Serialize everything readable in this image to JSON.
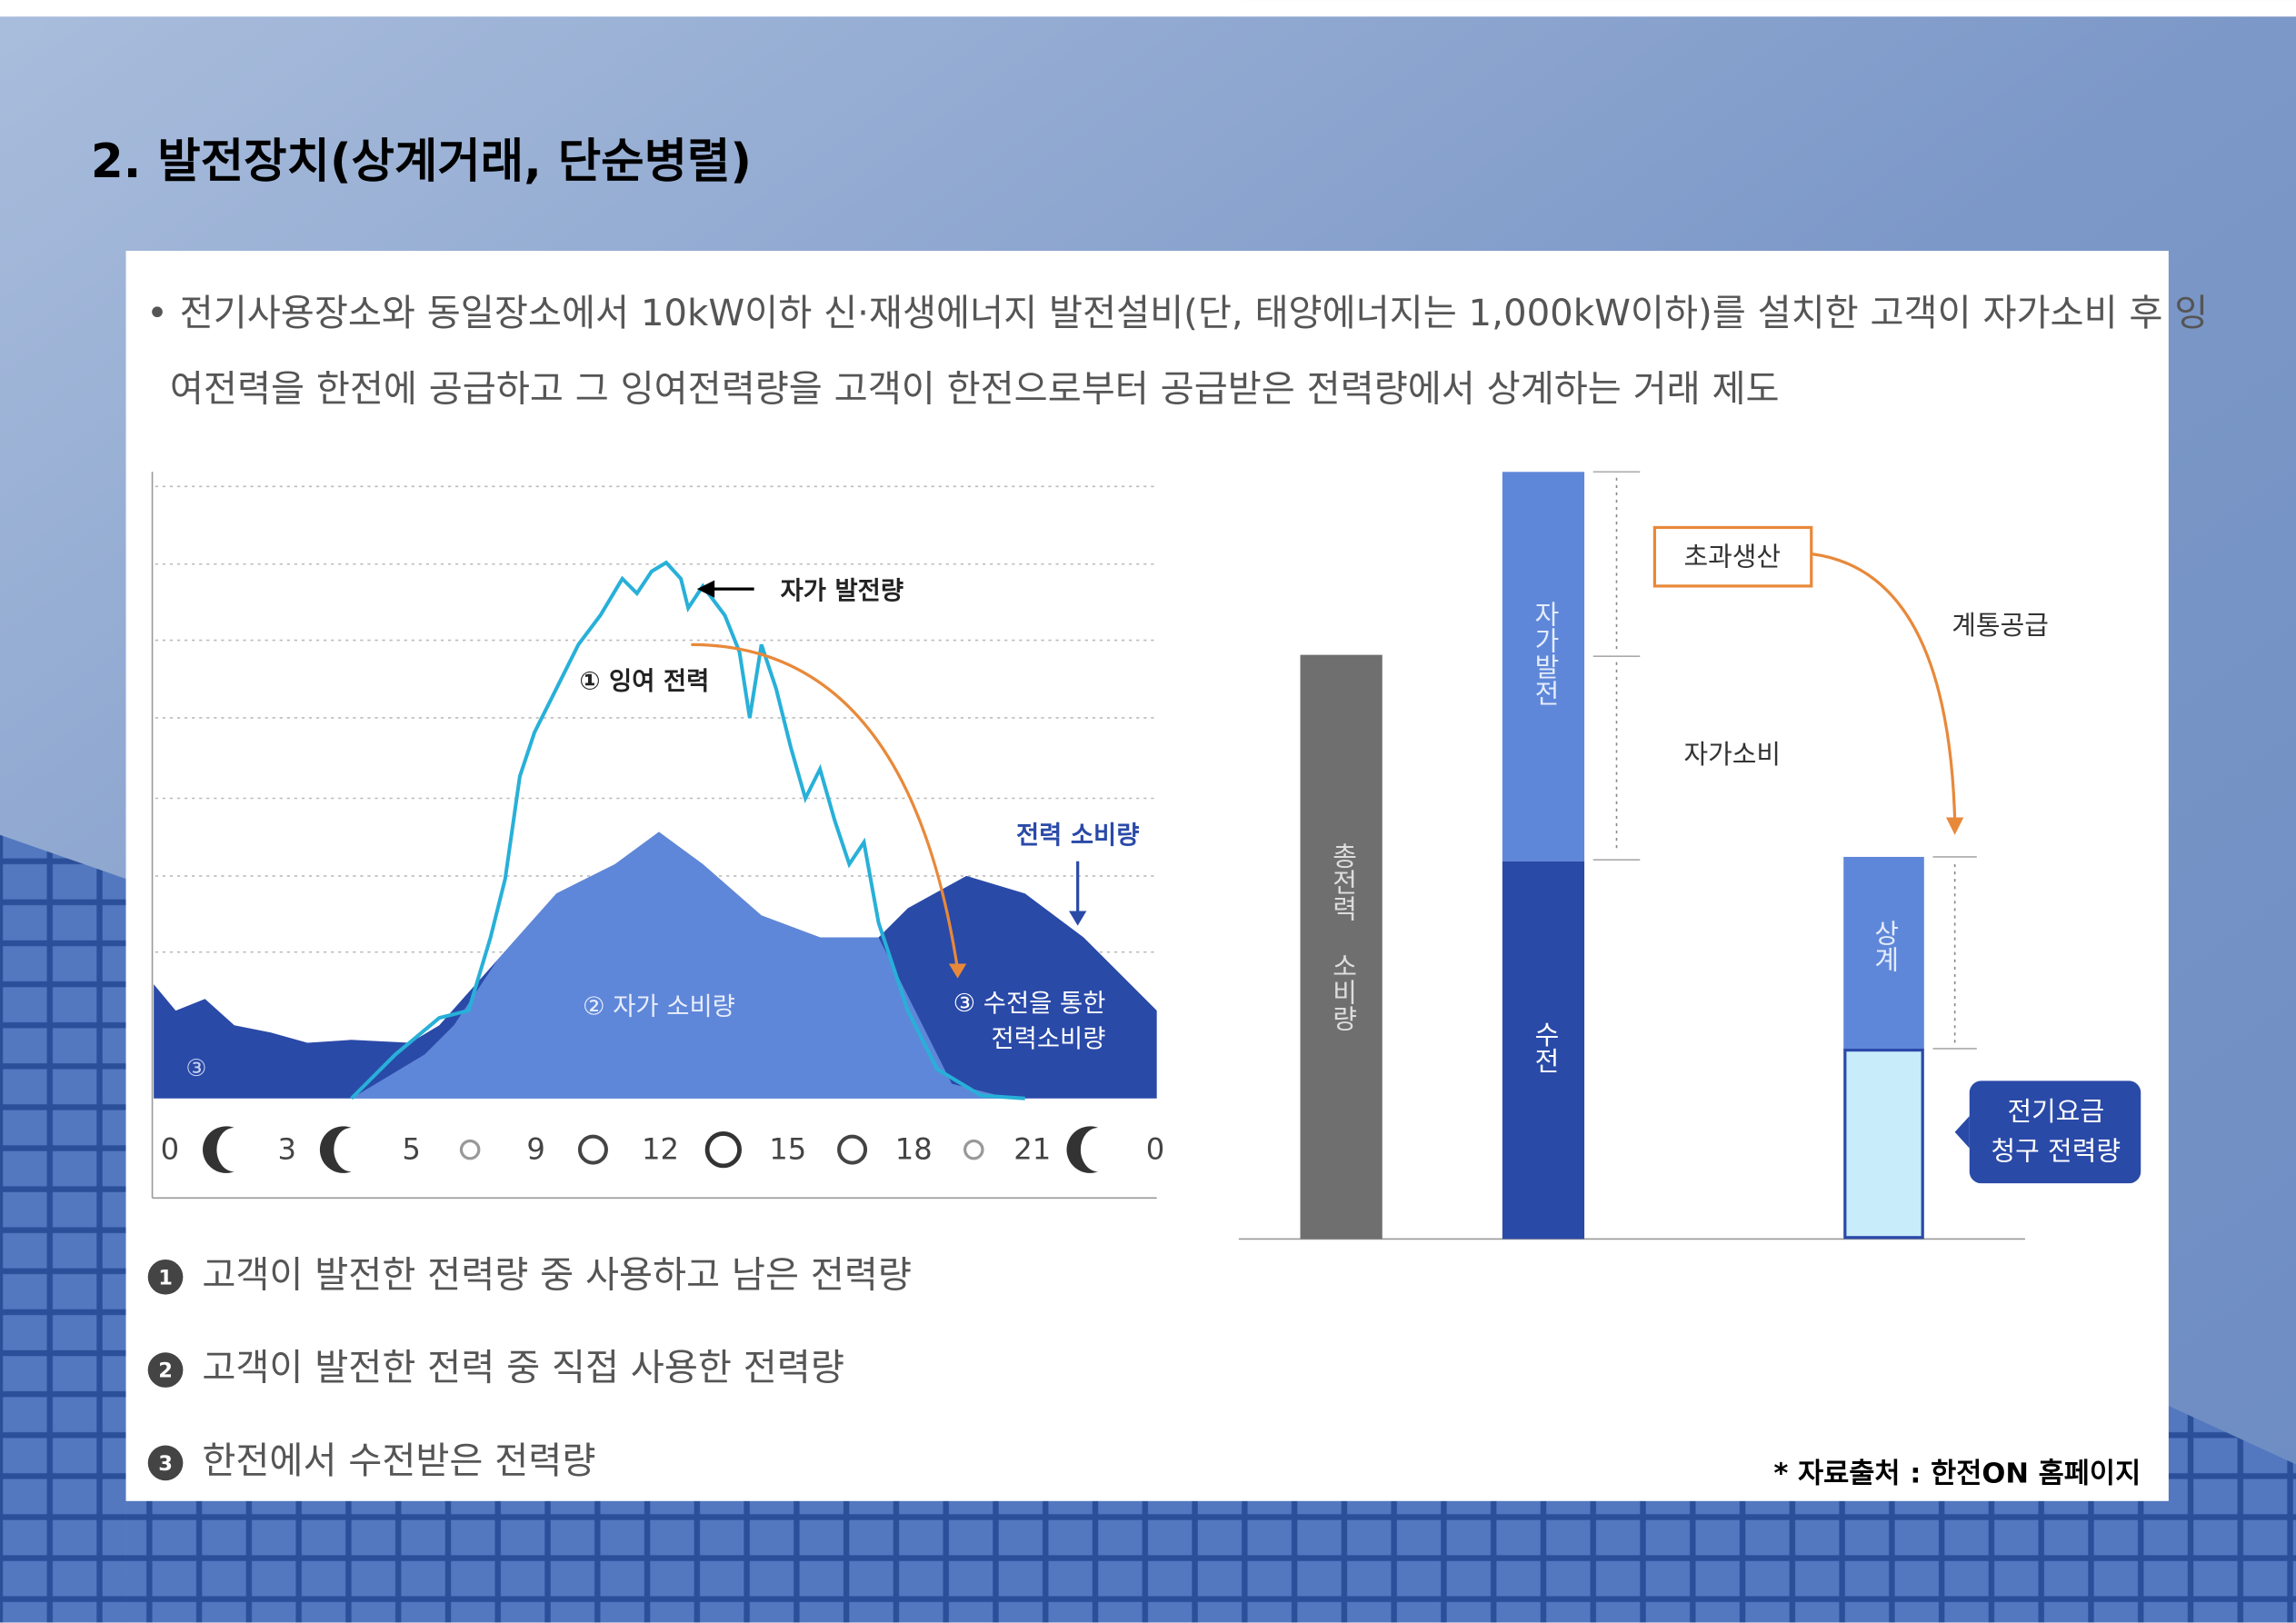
{
  "title": "2. 발전장치(상계거래, 단순병렬)",
  "description": [
    "• 전기사용장소와 동일장소에서 10kW이하 신·재생에너지 발전설비(단, 태양에너지는 1,000kW이하)를 설치한 고객이 자가소비 후 잉",
    "여전력을 한전에 공급하고 그 잉여전력량을 고객이 한전으로부터 공급받은 전력량에서 상계하는 거래 제도"
  ],
  "left_diagram": {
    "generation": "자가 발전량",
    "surplus": "① 잉여 전력",
    "consumption": "전력 소비량",
    "self_consumption": "② 자가 소비량",
    "grid_consumption": [
      "③ 수전을 통한",
      "전력소비량"
    ],
    "grid_marker": "③",
    "time_labels": [
      "0",
      "3",
      "5",
      "9",
      "12",
      "15",
      "18",
      "21",
      "0"
    ]
  },
  "right_diagram": {
    "total": "총전력 소비량",
    "self_generation": "자가발전",
    "received": "수전",
    "excess": "초과생산",
    "grid_supply": "계통공급",
    "self_use": "자가소비",
    "offset": "상계",
    "bill": [
      "전기요금",
      "청구 전력량"
    ]
  },
  "legend": [
    {
      "marker": "1",
      "text": "고객이 발전한 전력량 중 사용하고 남은 전력량"
    },
    {
      "marker": "2",
      "text": "고객이 발전한 전력 중 직접 사용한 전력량"
    },
    {
      "marker": "3",
      "text": "한전에서 수전받은 전력량"
    }
  ],
  "source": "* 자료출처 : 한전ON 홈페이지"
}
